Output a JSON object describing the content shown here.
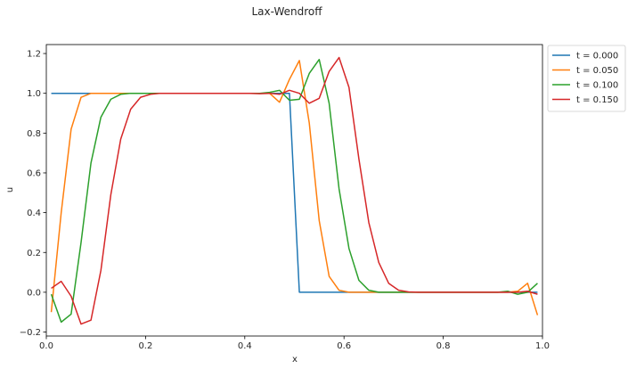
{
  "chart_data": {
    "type": "line",
    "title": "Lax-Wendroff",
    "xlabel": "x",
    "ylabel": "u",
    "xlim": [
      0.0,
      1.0
    ],
    "ylim": [
      -0.22,
      1.245
    ],
    "xticks": [
      "0.0",
      "0.2",
      "0.4",
      "0.6",
      "0.8",
      "1.0"
    ],
    "yticks": [
      "−0.2",
      "0.0",
      "0.2",
      "0.4",
      "0.6",
      "0.8",
      "1.0",
      "1.2"
    ],
    "grid": false,
    "legend_position": "outside-top-right",
    "x": [
      0.01,
      0.03,
      0.05,
      0.07,
      0.09,
      0.11,
      0.13,
      0.15,
      0.17,
      0.19,
      0.21,
      0.23,
      0.25,
      0.27,
      0.29,
      0.31,
      0.33,
      0.35,
      0.37,
      0.39,
      0.41,
      0.43,
      0.45,
      0.47,
      0.49,
      0.51,
      0.53,
      0.55,
      0.57,
      0.59,
      0.61,
      0.63,
      0.65,
      0.67,
      0.69,
      0.71,
      0.73,
      0.75,
      0.77,
      0.79,
      0.81,
      0.83,
      0.85,
      0.87,
      0.89,
      0.91,
      0.93,
      0.95,
      0.97,
      0.99
    ],
    "series": [
      {
        "name": "t = 0.000",
        "color": "#1f77b4",
        "values": [
          1.0,
          1.0,
          1.0,
          1.0,
          1.0,
          1.0,
          1.0,
          1.0,
          1.0,
          1.0,
          1.0,
          1.0,
          1.0,
          1.0,
          1.0,
          1.0,
          1.0,
          1.0,
          1.0,
          1.0,
          1.0,
          1.0,
          1.0,
          1.0,
          1.0,
          0.0,
          0.0,
          0.0,
          0.0,
          0.0,
          0.0,
          0.0,
          0.0,
          0.0,
          0.0,
          0.0,
          0.0,
          0.0,
          0.0,
          0.0,
          0.0,
          0.0,
          0.0,
          0.0,
          0.0,
          0.0,
          0.0,
          0.0,
          0.0,
          0.0
        ]
      },
      {
        "name": "t = 0.050",
        "color": "#ff7f0e",
        "values": [
          -0.1,
          0.4,
          0.82,
          0.98,
          1.0,
          1.0,
          1.0,
          1.0,
          1.0,
          1.0,
          1.0,
          1.0,
          1.0,
          1.0,
          1.0,
          1.0,
          1.0,
          1.0,
          1.0,
          1.0,
          1.0,
          1.0,
          1.0,
          0.955,
          1.07,
          1.165,
          0.85,
          0.36,
          0.08,
          0.01,
          0.0,
          0.0,
          0.0,
          0.0,
          0.0,
          0.0,
          0.0,
          0.0,
          0.0,
          0.0,
          0.0,
          0.0,
          0.0,
          0.0,
          0.0,
          0.0,
          0.0,
          0.005,
          0.045,
          -0.115
        ]
      },
      {
        "name": "t = 0.100",
        "color": "#2ca02c",
        "values": [
          -0.01,
          -0.15,
          -0.11,
          0.25,
          0.65,
          0.88,
          0.97,
          0.995,
          1.0,
          1.0,
          1.0,
          1.0,
          1.0,
          1.0,
          1.0,
          1.0,
          1.0,
          1.0,
          1.0,
          1.0,
          1.0,
          1.0,
          1.005,
          1.015,
          0.965,
          0.97,
          1.1,
          1.17,
          0.95,
          0.52,
          0.22,
          0.06,
          0.01,
          0.0,
          0.0,
          0.0,
          0.0,
          0.0,
          0.0,
          0.0,
          0.0,
          0.0,
          0.0,
          0.0,
          0.0,
          0.0,
          0.005,
          -0.01,
          0.0,
          0.045
        ]
      },
      {
        "name": "t = 0.150",
        "color": "#d62728",
        "values": [
          0.02,
          0.055,
          -0.02,
          -0.16,
          -0.14,
          0.11,
          0.49,
          0.77,
          0.92,
          0.98,
          0.995,
          1.0,
          1.0,
          1.0,
          1.0,
          1.0,
          1.0,
          1.0,
          1.0,
          1.0,
          1.0,
          0.998,
          1.0,
          0.995,
          1.015,
          1.0,
          0.95,
          0.975,
          1.11,
          1.18,
          1.03,
          0.67,
          0.35,
          0.15,
          0.045,
          0.01,
          0.002,
          0.0,
          0.0,
          0.0,
          0.0,
          0.0,
          0.0,
          0.0,
          0.0,
          0.0,
          0.0,
          0.0,
          0.005,
          -0.01
        ]
      }
    ]
  }
}
